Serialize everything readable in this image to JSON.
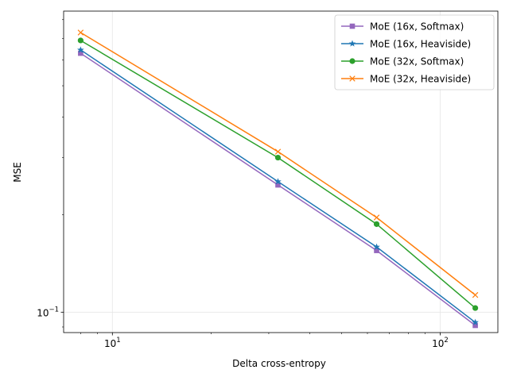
{
  "chart_data": {
    "type": "line",
    "title": "",
    "xlabel": "Delta cross-entropy",
    "ylabel": "MSE",
    "xscale": "log",
    "yscale": "log",
    "xlim": [
      7.1,
      150
    ],
    "ylim": [
      0.0865,
      0.85
    ],
    "grid": true,
    "legend_position": "top-right",
    "x_ticks": [
      {
        "value": 10,
        "label": "10",
        "exp": "1"
      },
      {
        "value": 100,
        "label": "10",
        "exp": "2"
      }
    ],
    "y_ticks": [
      {
        "value": 0.1,
        "label": "10",
        "exp": "−1"
      }
    ],
    "series": [
      {
        "name": "MoE (16x, Softmax)",
        "color": "#9467bd",
        "marker": "square",
        "x": [
          8,
          32,
          64,
          128
        ],
        "y": [
          0.63,
          0.247,
          0.155,
          0.091
        ]
      },
      {
        "name": "MoE (16x, Heaviside)",
        "color": "#1f77b4",
        "marker": "star",
        "x": [
          8,
          32,
          64,
          128
        ],
        "y": [
          0.645,
          0.253,
          0.159,
          0.093
        ]
      },
      {
        "name": "MoE (32x, Softmax)",
        "color": "#2ca02c",
        "marker": "circle",
        "x": [
          8,
          32,
          64,
          128
        ],
        "y": [
          0.69,
          0.3,
          0.187,
          0.103
        ]
      },
      {
        "name": "MoE (32x, Heaviside)",
        "color": "#ff7f0e",
        "marker": "x",
        "x": [
          8,
          32,
          64,
          128
        ],
        "y": [
          0.73,
          0.313,
          0.196,
          0.113
        ]
      }
    ]
  }
}
